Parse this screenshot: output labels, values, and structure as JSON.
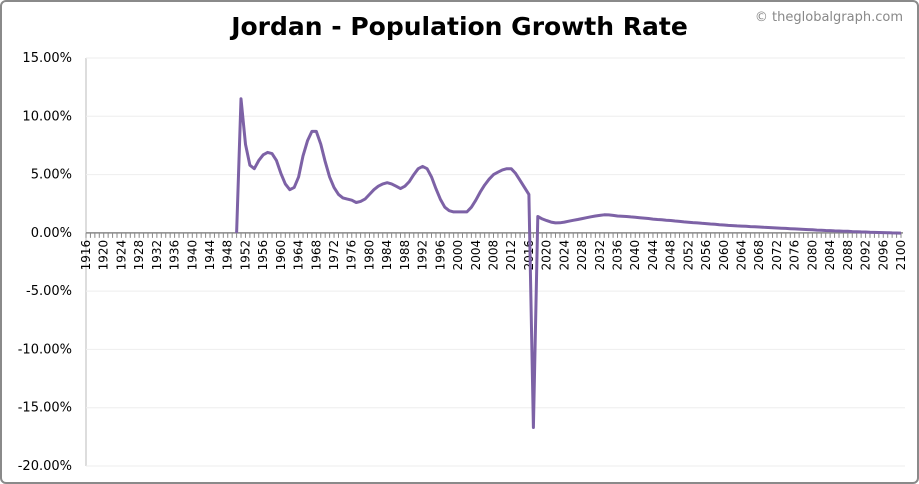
{
  "chart_data": {
    "type": "line",
    "title": "Jordan - Population Growth Rate",
    "watermark": "© theglobalgraph.com",
    "xlabel": "",
    "ylabel": "",
    "ylim": [
      -20,
      15
    ],
    "xlim": [
      1916,
      2100
    ],
    "y_ticks": [
      "15.00%",
      "10.00%",
      "5.00%",
      "0.00%",
      "-5.00%",
      "-10.00%",
      "-15.00%",
      "-20.00%"
    ],
    "y_tick_values": [
      15,
      10,
      5,
      0,
      -5,
      -10,
      -15,
      -20
    ],
    "x_tick_labels": [
      "1916",
      "1920",
      "1924",
      "1928",
      "1932",
      "1936",
      "1940",
      "1944",
      "1948",
      "1952",
      "1956",
      "1960",
      "1964",
      "1968",
      "1972",
      "1976",
      "1980",
      "1984",
      "1988",
      "1992",
      "1996",
      "2000",
      "2004",
      "2008",
      "2012",
      "2016",
      "2020",
      "2024",
      "2028",
      "2032",
      "2036",
      "2040",
      "2044",
      "2048",
      "2052",
      "2056",
      "2060",
      "2064",
      "2068",
      "2072",
      "2076",
      "2080",
      "2084",
      "2088",
      "2092",
      "2096",
      "2100"
    ],
    "grid": "horizontal",
    "line_color": "#7d62a6",
    "series": [
      {
        "x_start": 1950,
        "values": [
          0,
          11.5,
          7.6,
          5.8,
          5.5,
          6.2,
          6.7,
          6.9,
          6.8,
          6.2,
          5.1,
          4.2,
          3.7,
          3.9,
          4.8,
          6.6,
          7.9,
          8.7,
          8.7,
          7.6,
          6.1,
          4.8,
          3.9,
          3.3,
          3.0,
          2.9,
          2.8,
          2.6,
          2.7,
          2.9,
          3.3,
          3.7,
          4.0,
          4.2,
          4.3,
          4.2,
          4.0,
          3.8,
          4.0,
          4.4,
          5.0,
          5.5,
          5.7,
          5.5,
          4.8,
          3.8,
          2.9,
          2.2,
          1.9,
          1.8,
          1.8,
          1.8,
          1.8,
          2.2,
          2.8,
          3.5,
          4.1,
          4.6,
          5.0,
          5.2,
          5.4,
          5.5,
          5.5,
          5.1,
          4.5,
          3.9,
          3.3,
          -16.7,
          1.4,
          1.2,
          1.05,
          0.92,
          0.85,
          0.86,
          0.92,
          1.0,
          1.08,
          1.15,
          1.22,
          1.3,
          1.38,
          1.45,
          1.5,
          1.55,
          1.54,
          1.5,
          1.45,
          1.42,
          1.4,
          1.37,
          1.34,
          1.3,
          1.27,
          1.23,
          1.18,
          1.15,
          1.12,
          1.09,
          1.06,
          1.02,
          0.98,
          0.94,
          0.91,
          0.88,
          0.85,
          0.82,
          0.79,
          0.76,
          0.73,
          0.7,
          0.67,
          0.64,
          0.62,
          0.6,
          0.58,
          0.56,
          0.54,
          0.52,
          0.5,
          0.48,
          0.46,
          0.44,
          0.42,
          0.4,
          0.38,
          0.36,
          0.34,
          0.32,
          0.3,
          0.28,
          0.26,
          0.24,
          0.22,
          0.2,
          0.19,
          0.17,
          0.16,
          0.14,
          0.13,
          0.11,
          0.1,
          0.08,
          0.07,
          0.05,
          0.04,
          0.03,
          0.02,
          0.01,
          0.0,
          -0.01,
          -0.02
        ]
      }
    ]
  }
}
